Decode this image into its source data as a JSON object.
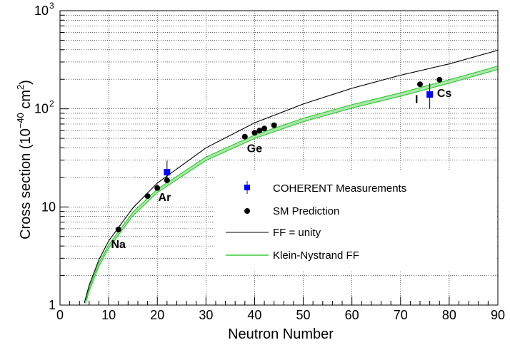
{
  "chart_data": {
    "type": "scatter",
    "title": "",
    "xlabel": "Neutron Number",
    "ylabel": "Cross section (10",
    "ylabel_exponent": "−40",
    "ylabel_unit": " cm",
    "ylabel_unit_exponent": "2",
    "ylabel_close": ")",
    "xlim": [
      0,
      90
    ],
    "ylim": [
      1,
      1000
    ],
    "yscale": "log",
    "grid": true,
    "x_ticks": [
      "0",
      "10",
      "20",
      "30",
      "40",
      "50",
      "60",
      "70",
      "80",
      "90"
    ],
    "y_ticks": [
      {
        "value": 1,
        "label": "1"
      },
      {
        "value": 10,
        "label": "10"
      },
      {
        "value": 100,
        "label": "10",
        "exp": "2"
      },
      {
        "value": 1000,
        "label": "10",
        "exp": "3"
      }
    ],
    "legend_position": "center-right",
    "series": [
      {
        "name": "COHERENT Measurements",
        "kind": "points-with-errors",
        "color": "#0000ff",
        "marker": "square",
        "points": [
          {
            "x": 22,
            "y": 22.6,
            "yerr_low": 5,
            "yerr_high": 7
          },
          {
            "x": 76,
            "y": 140,
            "yerr_low": 40,
            "yerr_high": 42
          }
        ]
      },
      {
        "name": "SM Prediction",
        "kind": "points",
        "color": "#000000",
        "marker": "circle",
        "points": [
          {
            "x": 12,
            "y": 5.9
          },
          {
            "x": 18,
            "y": 12.9
          },
          {
            "x": 20,
            "y": 15.6
          },
          {
            "x": 22,
            "y": 18.7
          },
          {
            "x": 38,
            "y": 52
          },
          {
            "x": 40,
            "y": 57
          },
          {
            "x": 41,
            "y": 60
          },
          {
            "x": 42,
            "y": 63
          },
          {
            "x": 44,
            "y": 68
          },
          {
            "x": 74,
            "y": 178
          },
          {
            "x": 78,
            "y": 198
          }
        ]
      },
      {
        "name": "FF = unity",
        "kind": "curve",
        "color": "#000000",
        "x": [
          5,
          6,
          8,
          10,
          15,
          20,
          30,
          40,
          50,
          60,
          70,
          80,
          90
        ],
        "y": [
          1.05,
          1.6,
          2.9,
          4.5,
          9.8,
          17.5,
          40,
          72,
          112,
          162,
          220,
          287,
          395
        ]
      },
      {
        "name": "Klein-Nystrand FF",
        "kind": "band",
        "color": "#33cc33",
        "x": [
          5,
          6,
          8,
          10,
          15,
          20,
          30,
          40,
          50,
          60,
          70,
          80,
          90
        ],
        "y": [
          0.98,
          1.45,
          2.6,
          3.95,
          8.5,
          14.6,
          31,
          52,
          77,
          106,
          140,
          190,
          262
        ],
        "band_halfwidth_fraction": 0.04
      }
    ],
    "annotations": [
      {
        "text": "Na",
        "x": 12,
        "y": 3.8
      },
      {
        "text": "Ar",
        "x": 21.5,
        "y": 11.5
      },
      {
        "text": "Ge",
        "x": 40,
        "y": 36
      },
      {
        "text": "I",
        "x": 73.3,
        "y": 115
      },
      {
        "text": "Cs",
        "x": 79,
        "y": 132
      }
    ]
  }
}
